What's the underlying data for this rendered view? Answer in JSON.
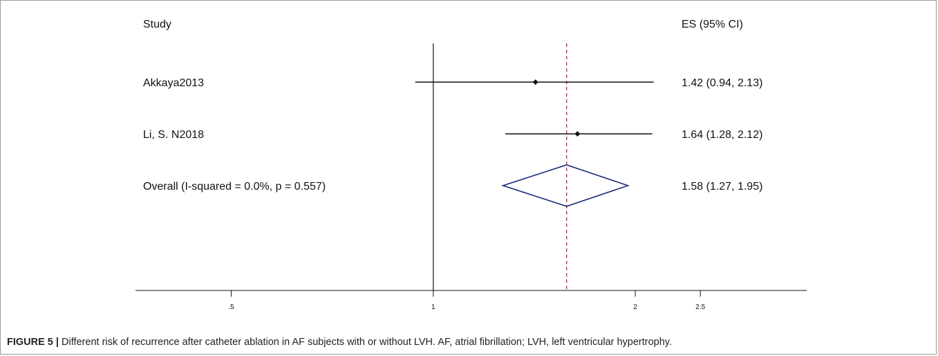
{
  "chart_data": {
    "type": "forest",
    "headers": {
      "study": "Study",
      "es": "ES (95% CI)"
    },
    "x_scale": "log",
    "xlim": [
      0.36,
      3.6
    ],
    "x_ticks": [
      {
        "value": 0.5,
        "label": ".5"
      },
      {
        "value": 1,
        "label": "1"
      },
      {
        "value": 2,
        "label": "2"
      },
      {
        "value": 2.5,
        "label": "2.5"
      }
    ],
    "null_line": 1,
    "pooled_line": 1.58,
    "studies": [
      {
        "label": "Akkaya2013",
        "es": 1.42,
        "lower": 0.94,
        "upper": 2.13,
        "es_text": "1.42 (0.94, 2.13)"
      },
      {
        "label": "Li, S. N2018",
        "es": 1.64,
        "lower": 1.28,
        "upper": 2.12,
        "es_text": "1.64 (1.28, 2.12)"
      }
    ],
    "overall": {
      "label": "Overall  (I-squared = 0.0%, p = 0.557)",
      "es": 1.58,
      "lower": 1.27,
      "upper": 1.95,
      "es_text": "1.58 (1.27, 1.95)"
    },
    "colors": {
      "axis": "#111111",
      "diamond": "#1a2a78",
      "pooled_line": "#a0262a"
    }
  },
  "caption": {
    "label": "FIGURE 5 |",
    "text": " Different risk of recurrence after catheter ablation in AF subjects with or without LVH. AF, atrial fibrillation; LVH, left ventricular hypertrophy."
  }
}
